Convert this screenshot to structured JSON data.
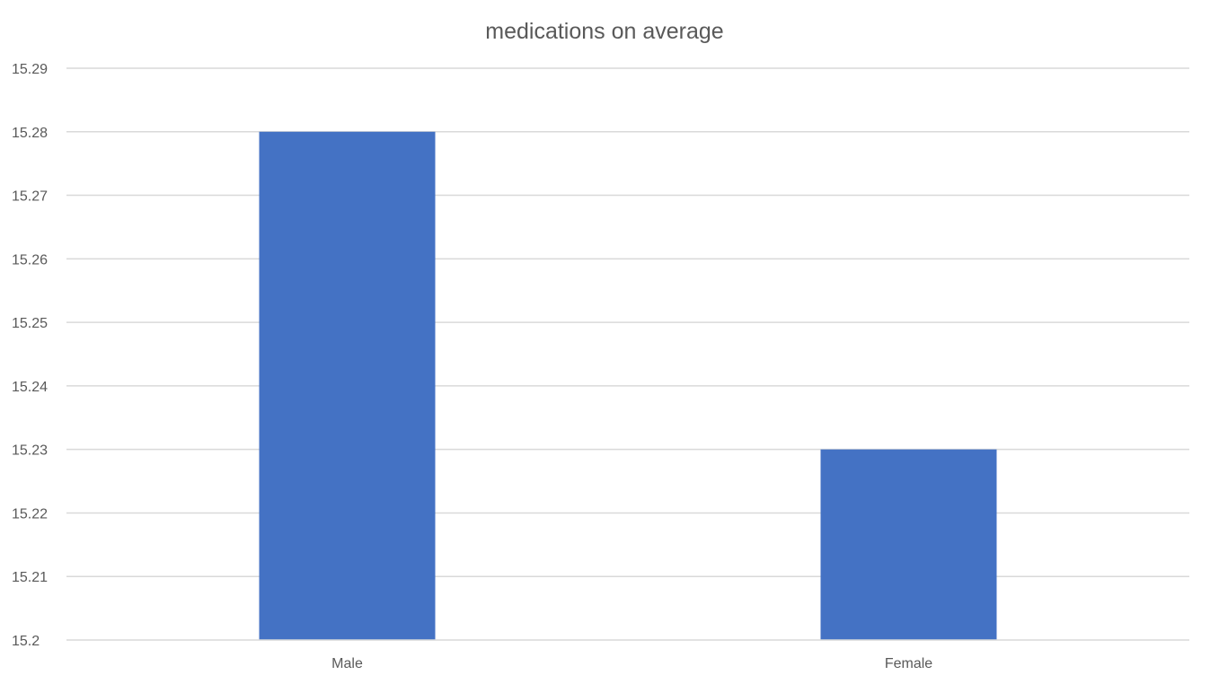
{
  "chart_data": {
    "type": "bar",
    "title": "medications on average",
    "categories": [
      "Male",
      "Female"
    ],
    "values": [
      15.28,
      15.23
    ],
    "ylim": [
      15.2,
      15.29
    ],
    "yticks": [
      "15.29",
      "15.28",
      "15.27",
      "15.26",
      "15.25",
      "15.24",
      "15.23",
      "15.22",
      "15.21",
      "15.2"
    ],
    "grid": true,
    "legend": "none",
    "bar_color": "#4472c4"
  }
}
